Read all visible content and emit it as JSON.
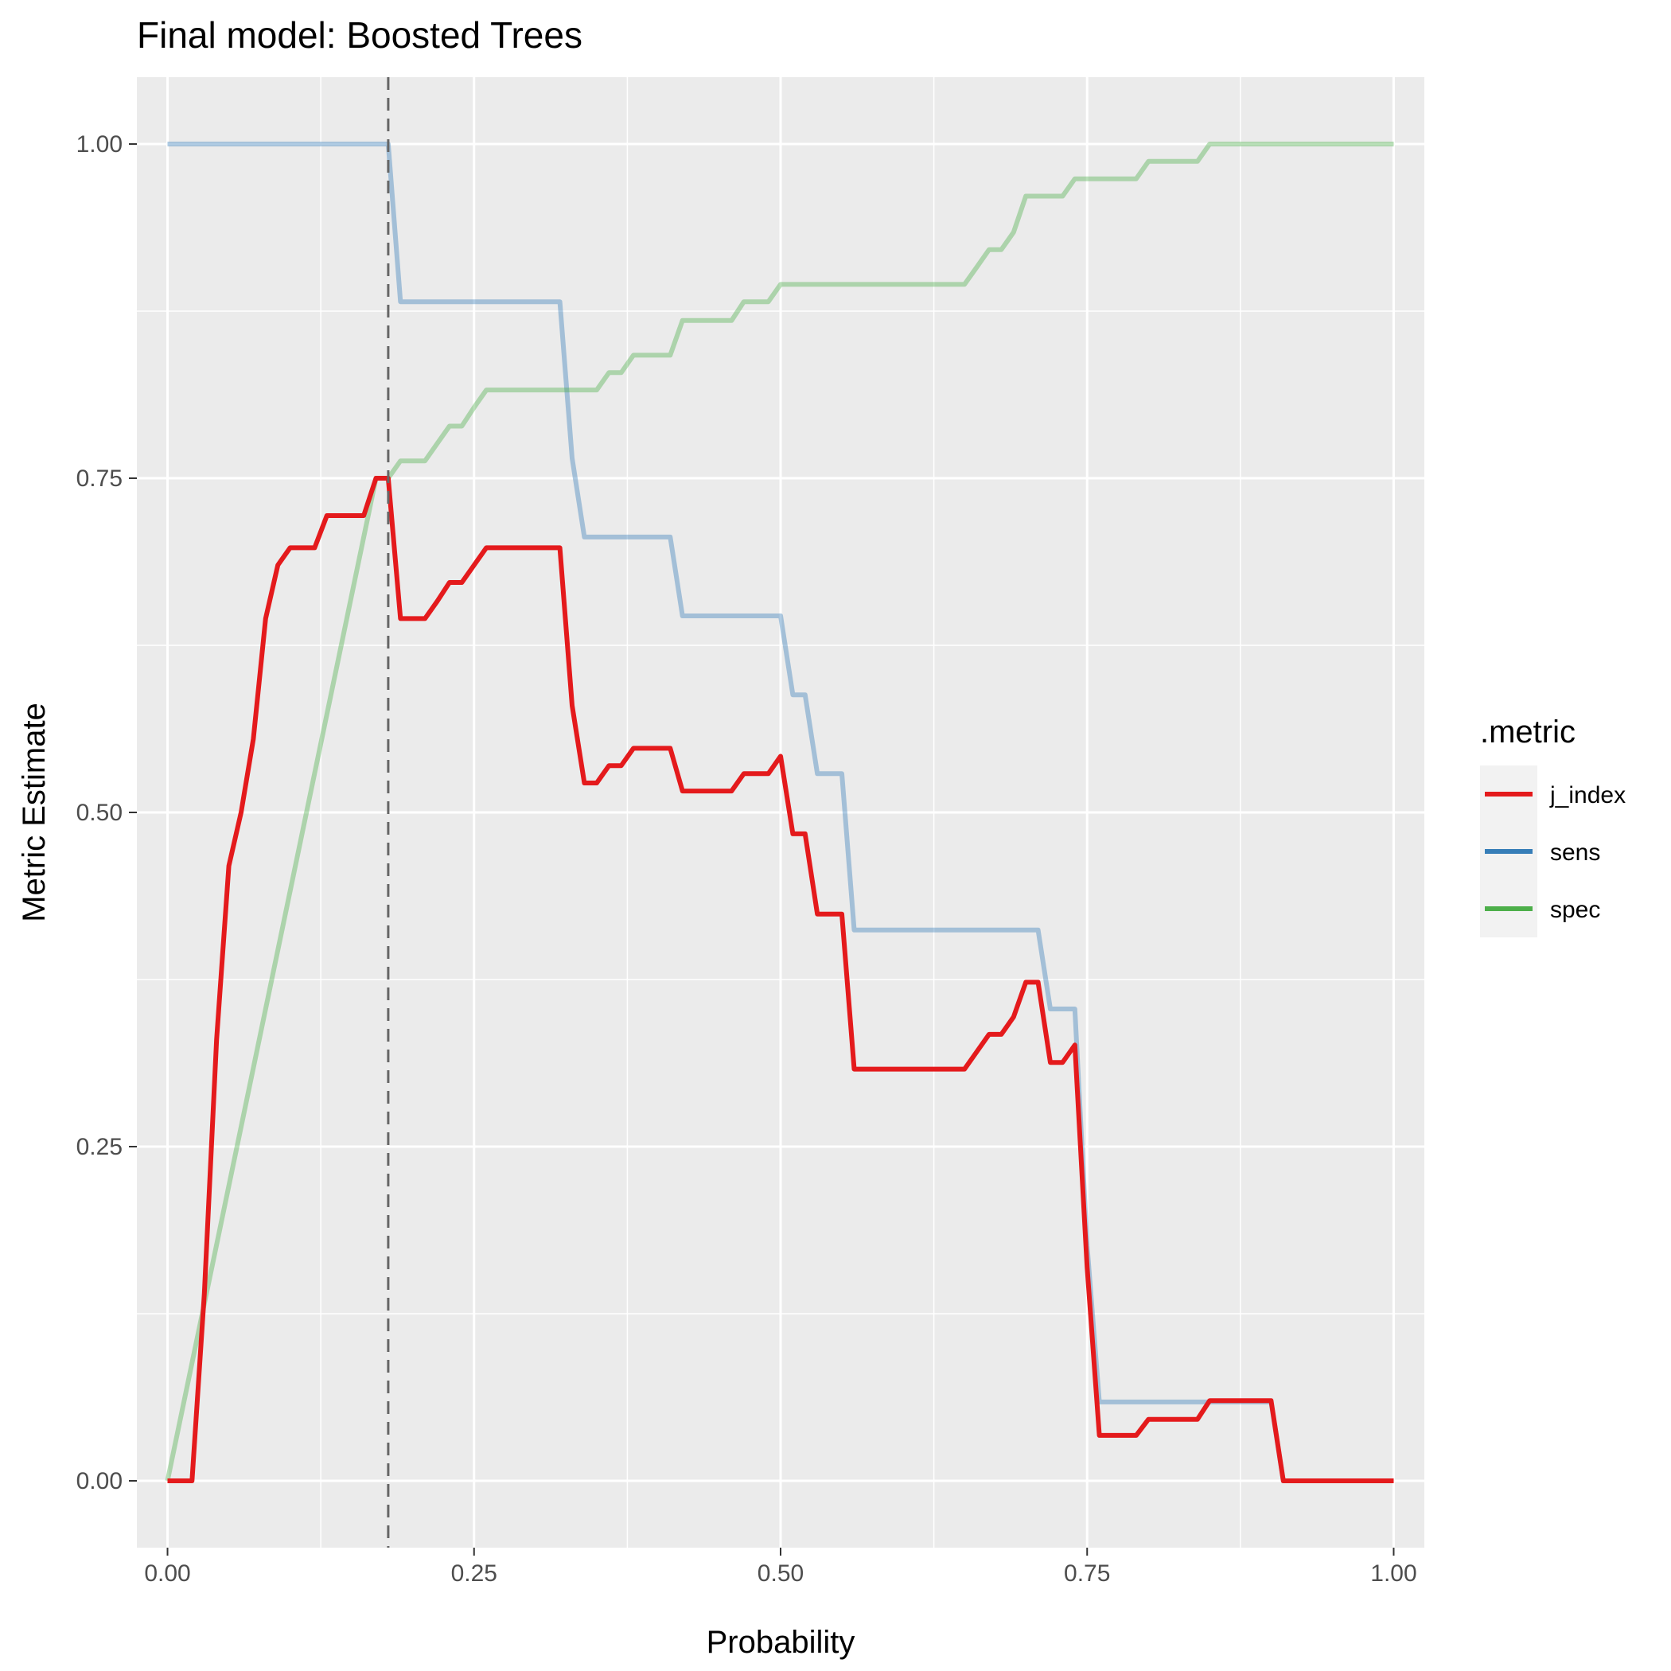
{
  "chart_data": {
    "type": "line",
    "title": "Final model: Boosted Trees",
    "xlabel": "Probability",
    "ylabel": "Metric Estimate",
    "xlim": [
      -0.025,
      1.025
    ],
    "ylim": [
      -0.05,
      1.05
    ],
    "x_ticks": [
      0,
      0.25,
      0.5,
      0.75,
      1
    ],
    "x_tick_labels": [
      "0.00",
      "0.25",
      "0.50",
      "0.75",
      "1.00"
    ],
    "y_ticks": [
      0,
      0.25,
      0.5,
      0.75,
      1
    ],
    "y_tick_labels": [
      "0.00",
      "0.25",
      "0.50",
      "0.75",
      "1.00"
    ],
    "grid": true,
    "legend": {
      "title": ".metric",
      "position": "right"
    },
    "vline": {
      "x": 0.18,
      "style": "dashed",
      "color": "#666666"
    },
    "series": [
      {
        "name": "j_index",
        "color": "#E41A1C",
        "opacity": 1,
        "x": [
          0,
          0.02,
          0.03,
          0.04,
          0.05,
          0.06,
          0.07,
          0.08,
          0.09,
          0.1,
          0.12,
          0.13,
          0.16,
          0.17,
          0.18,
          0.19,
          0.21,
          0.22,
          0.23,
          0.24,
          0.25,
          0.26,
          0.3,
          0.32,
          0.33,
          0.34,
          0.35,
          0.36,
          0.37,
          0.38,
          0.41,
          0.42,
          0.46,
          0.47,
          0.49,
          0.5,
          0.51,
          0.52,
          0.53,
          0.55,
          0.56,
          0.65,
          0.66,
          0.67,
          0.68,
          0.69,
          0.7,
          0.71,
          0.72,
          0.73,
          0.74,
          0.75,
          0.76,
          0.79,
          0.8,
          0.84,
          0.85,
          0.9,
          0.91,
          1
        ],
        "values": [
          0,
          0,
          0.14,
          0.33,
          0.46,
          0.5,
          0.555,
          0.645,
          0.685,
          0.698,
          0.698,
          0.722,
          0.722,
          0.75,
          0.75,
          0.645,
          0.645,
          0.658,
          0.672,
          0.672,
          0.685,
          0.698,
          0.698,
          0.698,
          0.58,
          0.522,
          0.522,
          0.535,
          0.535,
          0.548,
          0.548,
          0.516,
          0.516,
          0.529,
          0.529,
          0.542,
          0.484,
          0.484,
          0.424,
          0.424,
          0.308,
          0.308,
          0.321,
          0.334,
          0.334,
          0.347,
          0.373,
          0.373,
          0.313,
          0.313,
          0.326,
          0.16,
          0.034,
          0.034,
          0.046,
          0.046,
          0.06,
          0.06,
          0,
          0
        ]
      },
      {
        "name": "sens",
        "color": "#377EB8",
        "opacity": 0.4,
        "x": [
          0,
          0.18,
          0.19,
          0.32,
          0.33,
          0.34,
          0.41,
          0.42,
          0.5,
          0.51,
          0.52,
          0.53,
          0.55,
          0.56,
          0.71,
          0.72,
          0.74,
          0.75,
          0.76,
          0.9,
          0.91,
          1
        ],
        "values": [
          1,
          1,
          0.882,
          0.882,
          0.765,
          0.706,
          0.706,
          0.647,
          0.647,
          0.588,
          0.588,
          0.529,
          0.529,
          0.412,
          0.412,
          0.353,
          0.353,
          0.176,
          0.059,
          0.059,
          0,
          0
        ]
      },
      {
        "name": "spec",
        "color": "#4DAF4A",
        "opacity": 0.4,
        "x": [
          0,
          0.17,
          0.18,
          0.19,
          0.21,
          0.22,
          0.23,
          0.24,
          0.25,
          0.26,
          0.35,
          0.36,
          0.37,
          0.38,
          0.41,
          0.42,
          0.46,
          0.47,
          0.49,
          0.5,
          0.65,
          0.66,
          0.67,
          0.68,
          0.69,
          0.7,
          0.73,
          0.74,
          0.79,
          0.8,
          0.84,
          0.85,
          1
        ],
        "values": [
          0,
          0.75,
          0.75,
          0.763,
          0.763,
          0.776,
          0.789,
          0.789,
          0.803,
          0.816,
          0.816,
          0.829,
          0.829,
          0.842,
          0.842,
          0.868,
          0.868,
          0.882,
          0.882,
          0.895,
          0.895,
          0.908,
          0.921,
          0.921,
          0.934,
          0.961,
          0.961,
          0.974,
          0.974,
          0.987,
          0.987,
          1,
          1
        ]
      }
    ]
  }
}
